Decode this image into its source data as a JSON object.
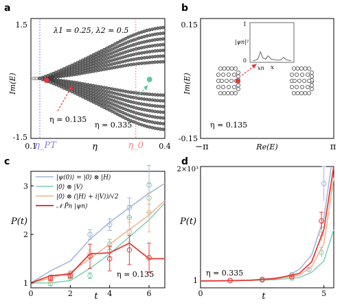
{
  "chart_data": [
    {
      "panel": "a",
      "type": "scatter",
      "ylabel": "Im(E)",
      "xlabel": "η",
      "xlim": [
        0.1,
        0.4
      ],
      "ylim": [
        -1.5,
        1.5
      ],
      "x_tick_labels": [
        "0.1",
        "0.4"
      ],
      "y_tick_labels": [
        "1.5",
        "-1.5"
      ],
      "vlines": [
        {
          "label": "η_PT",
          "x": 0.12,
          "color": "#7a7aff"
        },
        {
          "label": "η_0",
          "x": 0.335,
          "color": "#f08080"
        }
      ],
      "params_text": "λ1 = 0.25, λ2 = 0.5",
      "annotations": [
        {
          "text": "η = 0.135",
          "x": 0.135,
          "y": 0.0,
          "color": "#e53935"
        },
        {
          "text": "η = 0.335",
          "x": 0.335,
          "y": 0.0,
          "color": "#5cc8a8"
        }
      ],
      "branches": {
        "description_points": "eigenvalue branches",
        "x": [
          0.12,
          0.14,
          0.16,
          0.18,
          0.2,
          0.22,
          0.24,
          0.26,
          0.28,
          0.3,
          0.32,
          0.34,
          0.36,
          0.38,
          0.4
        ],
        "upper_max": [
          0.0,
          0.08,
          0.17,
          0.27,
          0.37,
          0.48,
          0.59,
          0.7,
          0.81,
          0.93,
          1.04,
          1.13,
          1.2,
          1.25,
          1.28
        ],
        "upper_min": [
          0.0,
          0.02,
          0.04,
          0.07,
          0.1,
          0.14,
          0.18,
          0.22,
          0.26,
          0.3,
          0.34,
          0.37,
          0.39,
          0.41,
          0.42
        ]
      },
      "highlight_points": [
        {
          "x": 0.135,
          "y": 0.0,
          "color": "#e53935"
        },
        {
          "x": 0.335,
          "y": 0.0,
          "color": "#5cc8a8"
        }
      ]
    },
    {
      "panel": "b",
      "type": "scatter",
      "ylabel": "Im(E)",
      "xlabel": "Re(E)",
      "x_tick_labels": [
        "−π",
        "π"
      ],
      "y_tick_labels": [
        "0.15",
        "-0.15"
      ],
      "ylim": [
        -0.15,
        0.15
      ],
      "annotation": "η = 0.135",
      "inset": {
        "ylabel": "|ψn|²",
        "xlabel": "x",
        "x_tick": "xn",
        "y_ticks": [
          "1",
          "0"
        ],
        "profile": [
          0,
          0.02,
          0.05,
          0.25,
          0.08,
          0.05,
          0.14,
          0.06,
          0.04,
          0.03,
          0.02,
          0.03,
          0.1,
          0.04,
          0.02,
          0.01
        ]
      }
    },
    {
      "panel": "c",
      "type": "line",
      "ylabel": "P(t)",
      "xlabel": "t",
      "xlim": [
        0,
        6.8
      ],
      "ylim": [
        0.9,
        3.3
      ],
      "x_ticks": [
        0,
        2,
        4,
        6
      ],
      "y_ticks": [
        1,
        2,
        3
      ],
      "annotation": "η = 0.135",
      "series": [
        {
          "name": "|ψ(0)⟩ = |0⟩ ⊗ |H⟩",
          "color": "#9fb3da",
          "x": [
            0,
            1,
            2,
            3,
            4,
            5,
            6,
            6.8
          ],
          "values": [
            1.0,
            1.25,
            1.45,
            1.9,
            2.25,
            2.55,
            2.85,
            3.05
          ],
          "markers": [
            {
              "x": 1,
              "y": 1.12,
              "err": 0.04
            },
            {
              "x": 2,
              "y": 1.2,
              "err": 0.05
            },
            {
              "x": 3,
              "y": 2.0,
              "err": 0.1
            },
            {
              "x": 4,
              "y": 2.2,
              "err": 0.12
            },
            {
              "x": 5,
              "y": 2.55,
              "err": 0.2
            },
            {
              "x": 6,
              "y": 3.02,
              "err": 0.4
            }
          ]
        },
        {
          "name": "|0⟩ ⊗ |V⟩",
          "color": "#7fcfb3",
          "x": [
            0,
            1,
            2,
            3,
            4,
            5,
            6,
            6.8
          ],
          "values": [
            1.0,
            1.0,
            1.05,
            1.3,
            1.6,
            1.95,
            2.3,
            2.65
          ],
          "markers": [
            {
              "x": 1,
              "y": 0.98,
              "err": 0.03
            },
            {
              "x": 2,
              "y": 1.1,
              "err": 0.04
            },
            {
              "x": 3,
              "y": 1.15,
              "err": 0.06
            },
            {
              "x": 4,
              "y": 1.8,
              "err": 0.1
            },
            {
              "x": 5,
              "y": 2.35,
              "err": 0.25
            },
            {
              "x": 6,
              "y": 2.75,
              "err": 0.3
            }
          ]
        },
        {
          "name": "|0⟩ ⊗ (|H⟩ + i|V⟩)/√2",
          "color": "#f4b08a",
          "x": [
            0,
            1,
            2,
            3,
            4,
            5,
            6,
            6.8
          ],
          "values": [
            1.0,
            1.1,
            1.22,
            1.5,
            1.8,
            2.1,
            2.4,
            2.7
          ],
          "markers": [
            {
              "x": 1,
              "y": 1.05,
              "err": 0.03
            },
            {
              "x": 2,
              "y": 1.15,
              "err": 0.05
            },
            {
              "x": 3,
              "y": 1.6,
              "err": 0.08
            },
            {
              "x": 4,
              "y": 1.65,
              "err": 0.12
            },
            {
              "x": 5,
              "y": 2.05,
              "err": 0.2
            },
            {
              "x": 6,
              "y": 2.45,
              "err": 0.4
            }
          ]
        },
        {
          "name": "𝒩 P̂n |ψn⟩",
          "color": "#e53935",
          "x": [
            0,
            1,
            2,
            3,
            4,
            5,
            6,
            6.8
          ],
          "values": [
            1.0,
            1.15,
            1.18,
            1.6,
            1.62,
            1.82,
            1.5,
            1.5
          ],
          "markers": [
            {
              "x": 1,
              "y": 1.1,
              "err": 0.05
            },
            {
              "x": 2,
              "y": 1.15,
              "err": 0.05
            },
            {
              "x": 3,
              "y": 1.55,
              "err": 0.25
            },
            {
              "x": 4,
              "y": 1.5,
              "err": 0.25
            },
            {
              "x": 5,
              "y": 1.68,
              "err": 0.3
            },
            {
              "x": 6,
              "y": 1.52,
              "err": 0.3
            }
          ]
        }
      ]
    },
    {
      "panel": "d",
      "type": "line",
      "ylabel": "P(t)",
      "xlabel": "t",
      "xlim": [
        0,
        5.4
      ],
      "ylim": [
        0,
        2000
      ],
      "x_ticks": [
        0,
        5
      ],
      "y_tick_labels": [
        "1",
        "2×10³"
      ],
      "annotation": "η = 0.335",
      "series": [
        {
          "name": "|ψ(0)⟩ = |0⟩ ⊗ |H⟩",
          "color": "#9fb3da",
          "x": [
            0,
            1,
            2,
            3,
            3.5,
            4,
            4.5,
            5,
            5.3
          ],
          "values": [
            0,
            5,
            15,
            50,
            80,
            200,
            450,
            1100,
            2000
          ],
          "markers": [
            {
              "x": 1.2,
              "y": 10,
              "err": 5
            },
            {
              "x": 2.5,
              "y": 30,
              "err": 8
            },
            {
              "x": 3.7,
              "y": 110,
              "err": 20
            },
            {
              "x": 4.4,
              "y": 200,
              "err": 30
            },
            {
              "x": 5,
              "y": 1700,
              "err": 300
            }
          ]
        },
        {
          "name": "|0⟩ ⊗ |V⟩",
          "color": "#7fcfb3",
          "x": [
            0,
            1,
            2,
            3,
            4,
            4.5,
            5,
            5.4
          ],
          "values": [
            0,
            3,
            8,
            20,
            60,
            150,
            350,
            900
          ],
          "markers": [
            {
              "x": 1.2,
              "y": 5,
              "err": 3
            },
            {
              "x": 2.5,
              "y": 15,
              "err": 5
            },
            {
              "x": 3.7,
              "y": 45,
              "err": 10
            },
            {
              "x": 4.9,
              "y": 500,
              "err": 80
            }
          ]
        },
        {
          "name": "|0⟩ ⊗ (|H⟩ + i|V⟩)/√2",
          "color": "#f4b08a",
          "x": [
            0,
            1,
            2,
            3,
            4,
            4.5,
            5,
            5.4
          ],
          "values": [
            0,
            4,
            12,
            35,
            100,
            250,
            650,
            1800
          ],
          "markers": [
            {
              "x": 1.2,
              "y": 8,
              "err": 4
            },
            {
              "x": 2.5,
              "y": 25,
              "err": 6
            },
            {
              "x": 3.7,
              "y": 80,
              "err": 15
            },
            {
              "x": 4.9,
              "y": 820,
              "err": 120
            }
          ]
        },
        {
          "name": "𝒩 P̂n |ψn⟩",
          "color": "#e53935",
          "x": [
            0,
            1,
            2,
            3,
            4,
            4.5,
            5,
            5.4
          ],
          "values": [
            0,
            4,
            12,
            40,
            130,
            330,
            900,
            2000
          ],
          "markers": [
            {
              "x": 1.2,
              "y": 7,
              "err": 3
            },
            {
              "x": 2.5,
              "y": 22,
              "err": 5
            },
            {
              "x": 3.7,
              "y": 70,
              "err": 12
            },
            {
              "x": 4.9,
              "y": 1050,
              "err": 150
            }
          ]
        }
      ]
    }
  ]
}
